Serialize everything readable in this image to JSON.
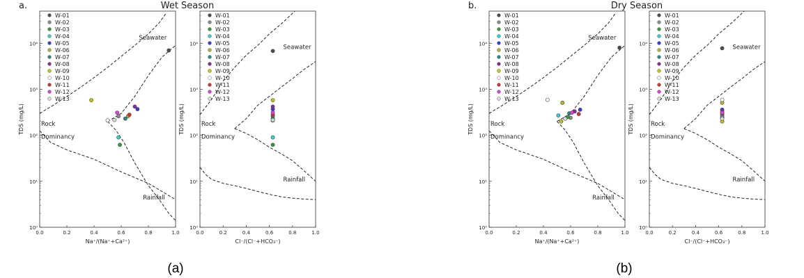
{
  "figure": {
    "captions": [
      "(a)",
      "(b)"
    ]
  },
  "legend_names": [
    "W-01",
    "W-02",
    "W-03",
    "W-04",
    "W-05",
    "W-06",
    "W-07",
    "W-08",
    "W-09",
    "W-10",
    "W-11",
    "W-12",
    "W-13"
  ],
  "colors": [
    "#4d4d4d",
    "#8c8c8c",
    "#3a9a3a",
    "#2fd3d3",
    "#3b3bd8",
    "#b5b52a",
    "#2a8a8a",
    "#8b2a9a",
    "#c8c800",
    "#ffffff",
    "#d83030",
    "#e040e0",
    "#dcdcdc"
  ],
  "text_labels": {
    "seawater": "Seawater",
    "rainfall": "Rainfall",
    "rock1": "Rock",
    "rock2": "Dominancy"
  },
  "chart_data": [
    {
      "type": "scatter",
      "panel_label": "a.",
      "title": "Wet Season",
      "xlabel": "Na⁺/(Na⁺+Ca²⁺)",
      "ylabel": "TDS (mg/L)",
      "xlim": [
        0,
        1
      ],
      "ylim": [
        1,
        50000
      ],
      "yscale": "log",
      "xticks": [
        "0.0",
        "0.2",
        "0.4",
        "0.6",
        "0.8",
        "1.0"
      ],
      "yticks": [
        "10⁰",
        "10¹",
        "10²",
        "10³",
        "10⁴"
      ],
      "series": [
        {
          "name": "W-01",
          "x": [
            0.95
          ],
          "y": [
            7000
          ]
        },
        {
          "name": "W-02",
          "x": [
            0.58
          ],
          "y": [
            260
          ]
        },
        {
          "name": "W-03",
          "x": [
            0.59
          ],
          "y": [
            62
          ]
        },
        {
          "name": "W-04",
          "x": [
            0.58
          ],
          "y": [
            90
          ]
        },
        {
          "name": "W-05",
          "x": [
            0.72
          ],
          "y": [
            370
          ]
        },
        {
          "name": "W-06",
          "x": [
            0.65
          ],
          "y": [
            260
          ]
        },
        {
          "name": "W-07",
          "x": [
            0.63
          ],
          "y": [
            230
          ]
        },
        {
          "name": "W-08",
          "x": [
            0.7
          ],
          "y": [
            420
          ]
        },
        {
          "name": "W-09",
          "x": [
            0.38
          ],
          "y": [
            580
          ]
        },
        {
          "name": "W-10",
          "x": [
            0.5
          ],
          "y": [
            210
          ]
        },
        {
          "name": "W-11",
          "x": [
            0.66
          ],
          "y": [
            280
          ]
        },
        {
          "name": "W-12",
          "x": [
            0.57
          ],
          "y": [
            310
          ]
        },
        {
          "name": "W-13",
          "x": [
            0.55
          ],
          "y": [
            215
          ]
        }
      ]
    },
    {
      "type": "scatter",
      "title": "",
      "xlabel": "Cl⁻/(Cl⁻+HCO₃⁻)",
      "ylabel": "TDS (mg/L)",
      "xlim": [
        0,
        1
      ],
      "ylim": [
        1,
        50000
      ],
      "yscale": "log",
      "xticks": [
        "0.0",
        "0.2",
        "0.4",
        "0.6",
        "0.8",
        "1.0"
      ],
      "yticks": [
        "10⁰",
        "10¹",
        "10²",
        "10³",
        "10⁴"
      ],
      "series": [
        {
          "name": "W-01",
          "x": [
            0.63
          ],
          "y": [
            6800
          ]
        },
        {
          "name": "W-02",
          "x": [
            0.63
          ],
          "y": [
            260
          ]
        },
        {
          "name": "W-03",
          "x": [
            0.63
          ],
          "y": [
            62
          ]
        },
        {
          "name": "W-04",
          "x": [
            0.63
          ],
          "y": [
            90
          ]
        },
        {
          "name": "W-05",
          "x": [
            0.63
          ],
          "y": [
            370
          ]
        },
        {
          "name": "W-06",
          "x": [
            0.63
          ],
          "y": [
            260
          ]
        },
        {
          "name": "W-07",
          "x": [
            0.63
          ],
          "y": [
            230
          ]
        },
        {
          "name": "W-08",
          "x": [
            0.63
          ],
          "y": [
            420
          ]
        },
        {
          "name": "W-09",
          "x": [
            0.63
          ],
          "y": [
            580
          ]
        },
        {
          "name": "W-10",
          "x": [
            0.63
          ],
          "y": [
            210
          ]
        },
        {
          "name": "W-11",
          "x": [
            0.63
          ],
          "y": [
            280
          ]
        },
        {
          "name": "W-12",
          "x": [
            0.63
          ],
          "y": [
            310
          ]
        },
        {
          "name": "W-13",
          "x": [
            0.63
          ],
          "y": [
            215
          ]
        }
      ]
    },
    {
      "type": "scatter",
      "panel_label": "b.",
      "title": "Dry Season",
      "xlabel": "Na⁺/(Na⁺+Ca²⁺)",
      "ylabel": "TDS (mg/L)",
      "xlim": [
        0,
        1
      ],
      "ylim": [
        1,
        50000
      ],
      "yscale": "log",
      "xticks": [
        "0.0",
        "0.2",
        "0.4",
        "0.6",
        "0.8",
        "1.0"
      ],
      "yticks": [
        "10⁰",
        "10¹",
        "10²",
        "10³",
        "10⁴"
      ],
      "series": [
        {
          "name": "W-01",
          "x": [
            0.96
          ],
          "y": [
            8000
          ]
        },
        {
          "name": "W-02",
          "x": [
            0.6
          ],
          "y": [
            240
          ]
        },
        {
          "name": "W-03",
          "x": [
            0.58
          ],
          "y": [
            250
          ]
        },
        {
          "name": "W-04",
          "x": [
            0.51
          ],
          "y": [
            270
          ]
        },
        {
          "name": "W-05",
          "x": [
            0.67
          ],
          "y": [
            360
          ]
        },
        {
          "name": "W-06",
          "x": [
            0.54
          ],
          "y": [
            510
          ]
        },
        {
          "name": "W-07",
          "x": [
            0.59
          ],
          "y": [
            300
          ]
        },
        {
          "name": "W-08",
          "x": [
            0.63
          ],
          "y": [
            330
          ]
        },
        {
          "name": "W-09",
          "x": [
            0.53
          ],
          "y": [
            200
          ]
        },
        {
          "name": "W-10",
          "x": [
            0.43
          ],
          "y": [
            590
          ]
        },
        {
          "name": "W-11",
          "x": [
            0.66
          ],
          "y": [
            290
          ]
        },
        {
          "name": "W-12",
          "x": [
            0.61
          ],
          "y": [
            310
          ]
        },
        {
          "name": "W-13",
          "x": [
            0.56
          ],
          "y": [
            230
          ]
        }
      ]
    },
    {
      "type": "scatter",
      "title": "",
      "xlabel": "Cl⁻/(Cl⁻+HCO₃⁻)",
      "ylabel": "TDS (mg/L)",
      "xlim": [
        0,
        1
      ],
      "ylim": [
        1,
        50000
      ],
      "yscale": "log",
      "xticks": [
        "0.0",
        "0.2",
        "0.4",
        "0.6",
        "0.8",
        "1.0"
      ],
      "yticks": [
        "10⁰",
        "10¹",
        "10²",
        "10³",
        "10⁴"
      ],
      "series": [
        {
          "name": "W-01",
          "x": [
            0.63
          ],
          "y": [
            7800
          ]
        },
        {
          "name": "W-02",
          "x": [
            0.63
          ],
          "y": [
            240
          ]
        },
        {
          "name": "W-03",
          "x": [
            0.63
          ],
          "y": [
            250
          ]
        },
        {
          "name": "W-04",
          "x": [
            0.63
          ],
          "y": [
            270
          ]
        },
        {
          "name": "W-05",
          "x": [
            0.63
          ],
          "y": [
            360
          ]
        },
        {
          "name": "W-06",
          "x": [
            0.63
          ],
          "y": [
            510
          ]
        },
        {
          "name": "W-07",
          "x": [
            0.63
          ],
          "y": [
            300
          ]
        },
        {
          "name": "W-08",
          "x": [
            0.63
          ],
          "y": [
            330
          ]
        },
        {
          "name": "W-09",
          "x": [
            0.63
          ],
          "y": [
            200
          ]
        },
        {
          "name": "W-10",
          "x": [
            0.63
          ],
          "y": [
            590
          ]
        },
        {
          "name": "W-11",
          "x": [
            0.63
          ],
          "y": [
            290
          ]
        },
        {
          "name": "W-12",
          "x": [
            0.63
          ],
          "y": [
            310
          ]
        },
        {
          "name": "W-13",
          "x": [
            0.63
          ],
          "y": [
            230
          ]
        }
      ]
    }
  ]
}
